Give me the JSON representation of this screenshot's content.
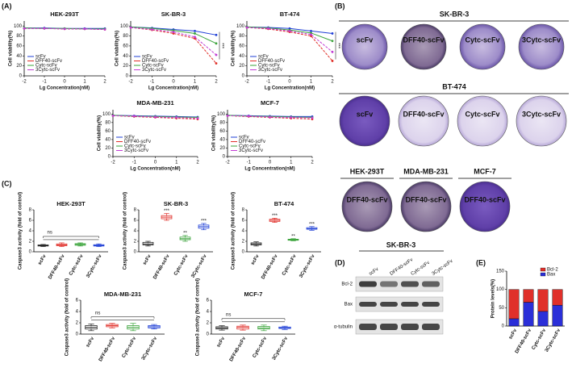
{
  "panel_labels": {
    "A": "(A)",
    "C": "(C)",
    "E": "(E)"
  },
  "chart_data": [
    {
      "type": "line",
      "title": "HEK-293T",
      "x_label": "Lg Concentration(nM)",
      "y_label": "Cell viability(%)",
      "x": [
        -2,
        -1,
        0,
        1,
        2
      ],
      "xlim": [
        -2,
        2
      ],
      "xticks": [
        -2,
        -1,
        0,
        1,
        2
      ],
      "ylim": [
        0,
        110
      ],
      "yticks": [
        0,
        20,
        40,
        60,
        80,
        100
      ],
      "series": [
        {
          "name": "scFv",
          "color": "#1f3fd6",
          "values": [
            96,
            96,
            95,
            95,
            95
          ]
        },
        {
          "name": "DFF40-scFv",
          "color": "#e0302a",
          "values": [
            95,
            95,
            94,
            94,
            93
          ]
        },
        {
          "name": "Cytc-scFv",
          "color": "#3aa33a",
          "values": [
            96,
            95,
            95,
            94,
            94
          ]
        },
        {
          "name": "3Cytc-scFv",
          "color": "#c23bd4",
          "values": [
            95,
            95,
            94,
            94,
            93
          ]
        }
      ]
    },
    {
      "type": "line",
      "title": "SK-BR-3",
      "x_label": "Lg Concentration(nM)",
      "y_label": "Cell viability(%)",
      "annotation": "***",
      "x": [
        -2,
        -1,
        0,
        1,
        2
      ],
      "xlim": [
        -2,
        2
      ],
      "xticks": [
        -2,
        -1,
        0,
        1,
        2
      ],
      "ylim": [
        0,
        110
      ],
      "yticks": [
        0,
        20,
        40,
        60,
        80,
        100
      ],
      "series": [
        {
          "name": "scFv",
          "color": "#1f3fd6",
          "values": [
            98,
            96,
            93,
            90,
            82
          ]
        },
        {
          "name": "DFF40-scFv",
          "color": "#e0302a",
          "values": [
            97,
            92,
            85,
            75,
            25
          ]
        },
        {
          "name": "Cytc-scFv",
          "color": "#3aa33a",
          "values": [
            98,
            95,
            91,
            85,
            65
          ]
        },
        {
          "name": "3Cytc-scFv",
          "color": "#c23bd4",
          "values": [
            97,
            93,
            88,
            78,
            42
          ]
        }
      ]
    },
    {
      "type": "line",
      "title": "BT-474",
      "x_label": "Lg Concentration(nM)",
      "y_label": "Cell viability(%)",
      "annotation": "***",
      "x": [
        -2,
        -1,
        0,
        1,
        2
      ],
      "xlim": [
        -2,
        2
      ],
      "xticks": [
        -2,
        -1,
        0,
        1,
        2
      ],
      "ylim": [
        0,
        110
      ],
      "yticks": [
        0,
        20,
        40,
        60,
        80,
        100
      ],
      "series": [
        {
          "name": "scFv",
          "color": "#1f3fd6",
          "values": [
            98,
            97,
            95,
            90,
            85
          ]
        },
        {
          "name": "DFF40-scFv",
          "color": "#e0302a",
          "values": [
            97,
            94,
            88,
            80,
            30
          ]
        },
        {
          "name": "Cytc-scFv",
          "color": "#3aa33a",
          "values": [
            98,
            96,
            92,
            86,
            70
          ]
        },
        {
          "name": "3Cytc-scFv",
          "color": "#c23bd4",
          "values": [
            97,
            95,
            90,
            83,
            48
          ]
        }
      ]
    },
    {
      "type": "line",
      "title": "MDA-MB-231",
      "x_label": "Lg Concentration(nM)",
      "y_label": "Cell viability(%)",
      "x": [
        -2,
        -1,
        0,
        1,
        2
      ],
      "xlim": [
        -2,
        2
      ],
      "xticks": [
        -2,
        -1,
        0,
        1,
        2
      ],
      "ylim": [
        0,
        110
      ],
      "yticks": [
        0,
        20,
        40,
        60,
        80,
        100
      ],
      "series": [
        {
          "name": "scFv",
          "color": "#1f3fd6",
          "values": [
            97,
            96,
            95,
            94,
            93
          ]
        },
        {
          "name": "DFF40-scFv",
          "color": "#e0302a",
          "values": [
            96,
            94,
            92,
            90,
            88
          ]
        },
        {
          "name": "Cytc-scFv",
          "color": "#3aa33a",
          "values": [
            97,
            95,
            94,
            93,
            92
          ]
        },
        {
          "name": "3Cytc-scFv",
          "color": "#c23bd4",
          "values": [
            96,
            95,
            93,
            92,
            90
          ]
        }
      ]
    },
    {
      "type": "line",
      "title": "MCF-7",
      "x_label": "Lg Concentration(nM)",
      "y_label": "Cell viability(%)",
      "x": [
        -2,
        -1,
        0,
        1,
        2
      ],
      "xlim": [
        -2,
        2
      ],
      "xticks": [
        -2,
        -1,
        0,
        1,
        2
      ],
      "ylim": [
        0,
        110
      ],
      "yticks": [
        0,
        20,
        40,
        60,
        80,
        100
      ],
      "series": [
        {
          "name": "scFv",
          "color": "#1f3fd6",
          "values": [
            97,
            96,
            95,
            94,
            94
          ]
        },
        {
          "name": "DFF40-scFv",
          "color": "#e0302a",
          "values": [
            96,
            94,
            92,
            90,
            88
          ]
        },
        {
          "name": "Cytc-scFv",
          "color": "#3aa33a",
          "values": [
            97,
            95,
            94,
            93,
            92
          ]
        },
        {
          "name": "3Cytc-scFv",
          "color": "#c23bd4",
          "values": [
            96,
            95,
            93,
            92,
            91
          ]
        }
      ]
    },
    {
      "type": "box",
      "title": "HEK-293T",
      "y_label": "Caspase3 activity (fold of control)",
      "bracket_label": "ns",
      "categories": [
        "scFv",
        "DFF40-scFv",
        "Cytc-scFv",
        "3Cytc-scFv"
      ],
      "colors": [
        "#222222",
        "#e0302a",
        "#3aa33a",
        "#1f3fd6"
      ],
      "min": [
        1.0,
        1.0,
        1.1,
        1.0
      ],
      "q1": [
        1.1,
        1.15,
        1.25,
        1.1
      ],
      "median": [
        1.2,
        1.3,
        1.4,
        1.2
      ],
      "q3": [
        1.3,
        1.5,
        1.55,
        1.35
      ],
      "max": [
        1.4,
        1.7,
        1.7,
        1.5
      ],
      "ylim": [
        0,
        8
      ],
      "yticks": [
        0,
        2,
        4,
        6,
        8
      ]
    },
    {
      "type": "box",
      "title": "SK-BR-3",
      "y_label": "Caspase3 activity (fold of control)",
      "significance": [
        null,
        "***",
        "**",
        "***"
      ],
      "categories": [
        "scFv",
        "DFF40-scFv",
        "Cytc-scFv",
        "3Cytc-scFv"
      ],
      "colors": [
        "#222222",
        "#e0302a",
        "#3aa33a",
        "#1f3fd6"
      ],
      "min": [
        1.1,
        6.0,
        2.0,
        4.2
      ],
      "q1": [
        1.3,
        6.3,
        2.3,
        4.5
      ],
      "median": [
        1.5,
        6.6,
        2.5,
        4.8
      ],
      "q3": [
        1.8,
        6.9,
        2.8,
        5.1
      ],
      "max": [
        2.0,
        7.3,
        3.1,
        5.4
      ],
      "ylim": [
        0,
        8
      ],
      "yticks": [
        0,
        2,
        4,
        6,
        8
      ]
    },
    {
      "type": "box",
      "title": "BT-474",
      "y_label": "Caspase3 activity (fold of control)",
      "significance": [
        null,
        "***",
        "**",
        "***"
      ],
      "categories": [
        "scFv",
        "DFF40-scFv",
        "Cytc-scFv",
        "3Cytc-scFv"
      ],
      "colors": [
        "#222222",
        "#e0302a",
        "#3aa33a",
        "#1f3fd6"
      ],
      "min": [
        1.1,
        5.6,
        2.1,
        4.1
      ],
      "q1": [
        1.3,
        5.8,
        2.2,
        4.3
      ],
      "median": [
        1.5,
        6.0,
        2.3,
        4.4
      ],
      "q3": [
        1.7,
        6.2,
        2.4,
        4.6
      ],
      "max": [
        1.9,
        6.4,
        2.5,
        4.8
      ],
      "ylim": [
        0,
        8
      ],
      "yticks": [
        0,
        2,
        4,
        6,
        8
      ]
    },
    {
      "type": "box",
      "title": "MDA-MB-231",
      "y_label": "Caspase3 activity (fold of control)",
      "bracket_label": "ns",
      "categories": [
        "scFv",
        "DFF40-scFv",
        "Cytc-scFv",
        "3Cytc-scFv"
      ],
      "colors": [
        "#222222",
        "#e0302a",
        "#3aa33a",
        "#1f3fd6"
      ],
      "min": [
        0.6,
        1.1,
        0.6,
        0.9
      ],
      "q1": [
        0.9,
        1.3,
        0.9,
        1.1
      ],
      "median": [
        1.2,
        1.5,
        1.2,
        1.3
      ],
      "q3": [
        1.5,
        1.7,
        1.5,
        1.5
      ],
      "max": [
        1.8,
        1.9,
        1.9,
        1.7
      ],
      "ylim": [
        0,
        6
      ],
      "yticks": [
        0,
        2,
        4,
        6
      ]
    },
    {
      "type": "box",
      "title": "MCF-7",
      "y_label": "Caspase3 activity (fold of control)",
      "bracket_label": "ns",
      "categories": [
        "scFv",
        "DFF40-scFv",
        "Cytc-scFv",
        "3Cytc-scFv"
      ],
      "colors": [
        "#222222",
        "#e0302a",
        "#3aa33a",
        "#1f3fd6"
      ],
      "min": [
        0.7,
        0.7,
        0.6,
        0.8
      ],
      "q1": [
        0.9,
        0.9,
        0.9,
        1.0
      ],
      "median": [
        1.1,
        1.2,
        1.1,
        1.1
      ],
      "q3": [
        1.3,
        1.4,
        1.35,
        1.25
      ],
      "max": [
        1.5,
        1.6,
        1.6,
        1.4
      ],
      "ylim": [
        0,
        6
      ],
      "yticks": [
        0,
        2,
        4,
        6
      ]
    },
    {
      "type": "stacked_bar",
      "y_label": "Protein levels(%)",
      "categories": [
        "scFv",
        "DFF40-scFv",
        "Cytc-scFv",
        "3Cytc-scFv"
      ],
      "series": [
        {
          "name": "Bax",
          "color": "#2b2fd8",
          "values": [
            20,
            65,
            40,
            57
          ]
        },
        {
          "name": "Bcl-2",
          "color": "#e0302a",
          "values": [
            80,
            35,
            60,
            43
          ]
        }
      ],
      "ylim": [
        0,
        150
      ],
      "yticks": [
        0,
        50,
        100,
        150
      ]
    }
  ],
  "colony_assay": {
    "label": "(B)",
    "groups": [
      {
        "title": "SK-BR-3",
        "wells": [
          "scFv",
          "DFF40-scFv",
          "Cytc-scFv",
          "3Cytc-scFv"
        ]
      },
      {
        "title": "BT-474",
        "wells": [
          "scFv",
          "DFF40-scFv",
          "Cytc-scFv",
          "3Cytc-scFv"
        ]
      }
    ],
    "single_wells": [
      {
        "title": "HEK-293T",
        "label": "DFF40-scFv"
      },
      {
        "title": "MDA-MB-231",
        "label": "DFF40-scFv"
      },
      {
        "title": "MCF-7",
        "label": "DFF40-scFv"
      }
    ]
  },
  "western_blot": {
    "label": "(D)",
    "title": "SK-BR-3",
    "lanes": [
      "scFv",
      "DFF40-scFv",
      "Cytc-scFv",
      "3Cytc-scFv"
    ],
    "proteins": [
      "Bcl-2",
      "Bax",
      "α-tubulin"
    ]
  }
}
